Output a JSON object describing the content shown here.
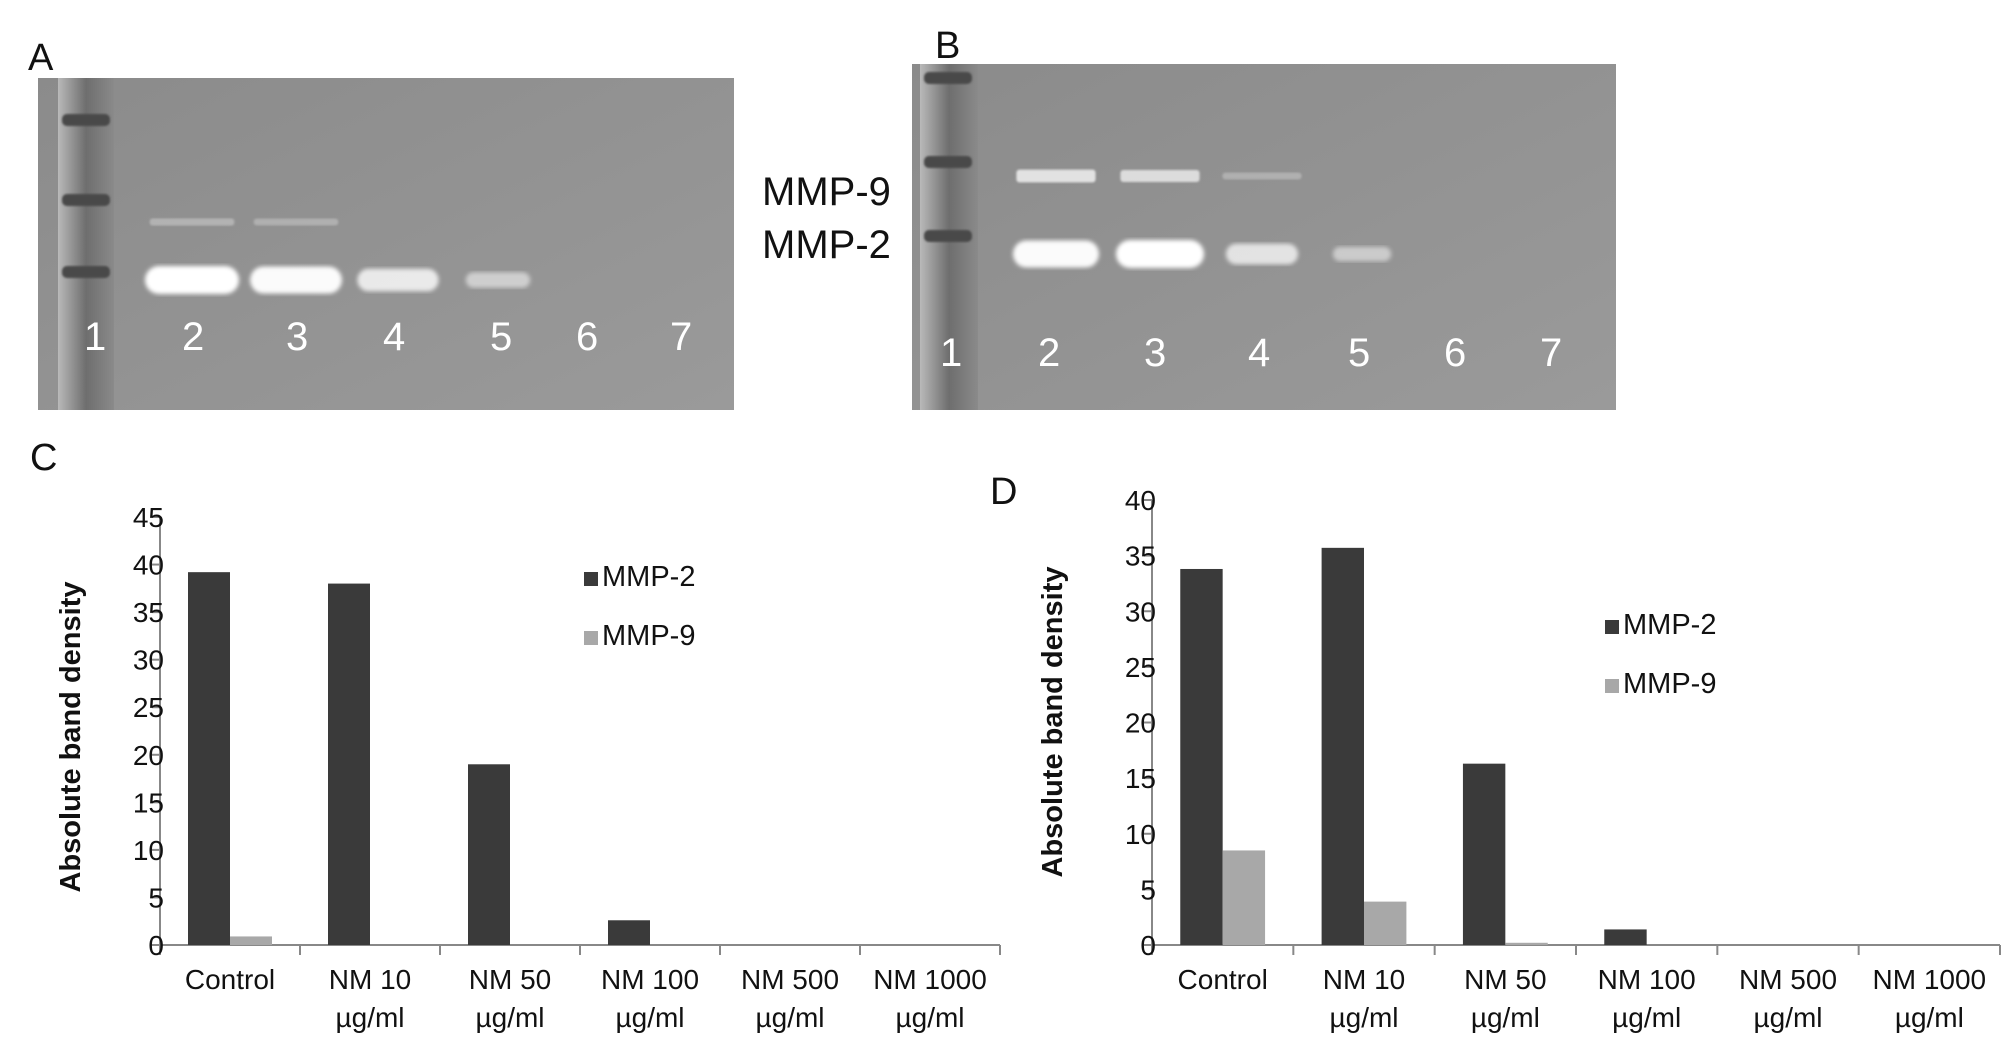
{
  "gels": [
    {
      "letter": "A",
      "lanes": [
        "1",
        "2",
        "3",
        "4",
        "5",
        "6",
        "7"
      ],
      "mmp2_band": [
        0,
        1.0,
        0.95,
        0.7,
        0.3,
        0,
        0
      ],
      "mmp9_band": [
        0,
        0.15,
        0.1,
        0,
        0,
        0,
        0
      ]
    },
    {
      "letter": "B",
      "lanes": [
        "1",
        "2",
        "3",
        "4",
        "5",
        "6",
        "7"
      ],
      "mmp2_band": [
        0,
        0.95,
        1.0,
        0.6,
        0.25,
        0,
        0
      ],
      "mmp9_band": [
        0,
        0.85,
        0.75,
        0.1,
        0,
        0,
        0
      ]
    }
  ],
  "gel_labels": {
    "mmp9": "MMP-9",
    "mmp2": "MMP-2"
  },
  "chart_data": [
    {
      "type": "bar",
      "panel": "C",
      "categories": [
        [
          "Control"
        ],
        [
          "NM 10",
          "µg/ml"
        ],
        [
          "NM 50",
          "µg/ml"
        ],
        [
          "NM 100",
          "µg/ml"
        ],
        [
          "NM 500",
          "µg/ml"
        ],
        [
          "NM 1000",
          "µg/ml"
        ]
      ],
      "series": [
        {
          "name": "MMP-2",
          "color": "#3a3a3a",
          "values": [
            39.2,
            38.0,
            19.0,
            2.6,
            0,
            0
          ]
        },
        {
          "name": "MMP-9",
          "color": "#a8a8a8",
          "values": [
            0.9,
            0,
            0,
            0,
            0,
            0
          ]
        }
      ],
      "ylabel": "Absolute band density",
      "ylim": [
        0,
        45
      ],
      "yticks": [
        0,
        5,
        10,
        15,
        20,
        25,
        30,
        35,
        40,
        45
      ],
      "legend": "top-right",
      "grid": false
    },
    {
      "type": "bar",
      "panel": "D",
      "categories": [
        [
          "Control"
        ],
        [
          "NM 10",
          "µg/ml"
        ],
        [
          "NM 50",
          "µg/ml"
        ],
        [
          "NM 100",
          "µg/ml"
        ],
        [
          "NM 500",
          "µg/ml"
        ],
        [
          "NM 1000",
          "µg/ml"
        ]
      ],
      "series": [
        {
          "name": "MMP-2",
          "color": "#3a3a3a",
          "values": [
            33.8,
            35.7,
            16.3,
            1.4,
            0,
            0
          ]
        },
        {
          "name": "MMP-9",
          "color": "#a8a8a8",
          "values": [
            8.5,
            3.9,
            0.2,
            0,
            0,
            0
          ]
        }
      ],
      "ylabel": "Absolute band density",
      "ylim": [
        0,
        40
      ],
      "yticks": [
        0,
        5,
        10,
        15,
        20,
        25,
        30,
        35,
        40
      ],
      "legend": "top-right",
      "grid": false
    }
  ]
}
